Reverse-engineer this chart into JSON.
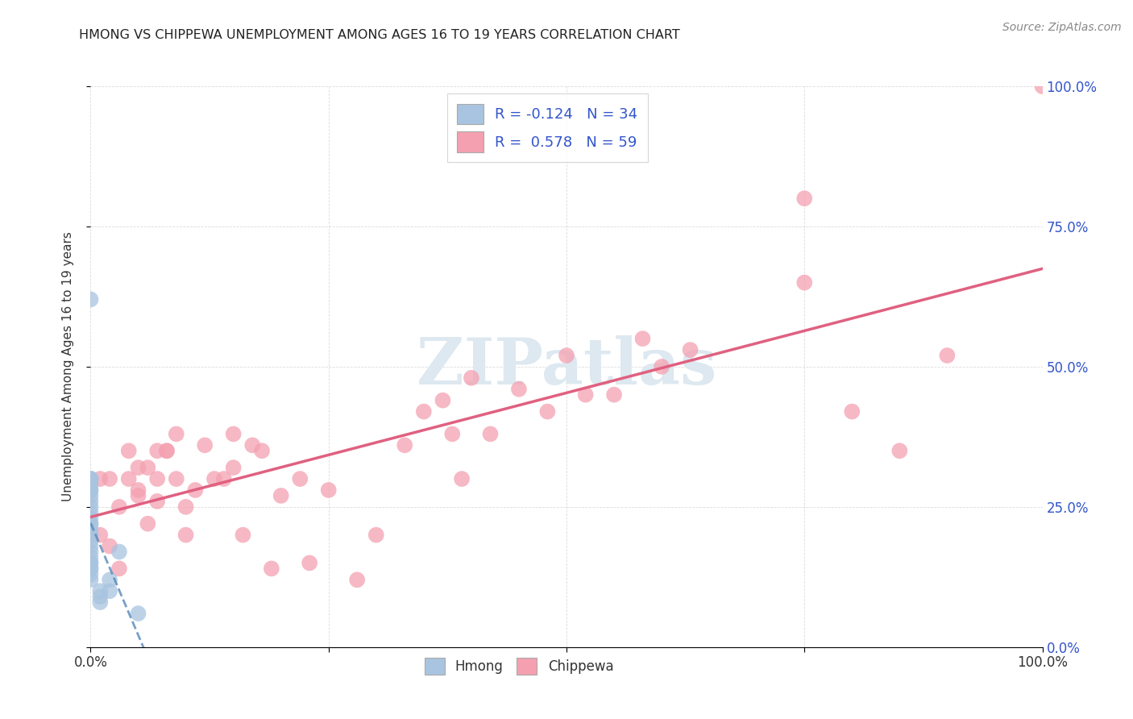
{
  "title": "HMONG VS CHIPPEWA UNEMPLOYMENT AMONG AGES 16 TO 19 YEARS CORRELATION CHART",
  "source": "Source: ZipAtlas.com",
  "ylabel": "Unemployment Among Ages 16 to 19 years",
  "xlim": [
    0,
    1.0
  ],
  "ylim": [
    0,
    1.0
  ],
  "xticks": [
    0.0,
    0.25,
    0.5,
    0.75,
    1.0
  ],
  "yticks": [
    0.0,
    0.25,
    0.5,
    0.75,
    1.0
  ],
  "xticklabels": [
    "0.0%",
    "",
    "",
    "",
    "100.0%"
  ],
  "right_yticklabels": [
    "0.0%",
    "25.0%",
    "50.0%",
    "75.0%",
    "100.0%"
  ],
  "hmong_color": "#a8c4e0",
  "chippewa_color": "#f4a0b0",
  "hmong_R": -0.124,
  "hmong_N": 34,
  "chippewa_R": 0.578,
  "chippewa_N": 59,
  "hmong_line_color": "#5588bb",
  "chippewa_line_color": "#e06080",
  "watermark_color": "#dde8f0",
  "legend_edge_color": "#cccccc",
  "text_color": "#3355cc",
  "title_color": "#222222",
  "source_color": "#888888",
  "grid_color": "#cccccc",
  "hmong_x": [
    0.0,
    0.0,
    0.0,
    0.0,
    0.0,
    0.0,
    0.0,
    0.0,
    0.0,
    0.0,
    0.0,
    0.0,
    0.0,
    0.0,
    0.0,
    0.0,
    0.0,
    0.0,
    0.0,
    0.0,
    0.0,
    0.0,
    0.0,
    0.0,
    0.0,
    0.0,
    0.0,
    0.01,
    0.01,
    0.01,
    0.02,
    0.02,
    0.03,
    0.05
  ],
  "hmong_y": [
    0.12,
    0.13,
    0.14,
    0.14,
    0.15,
    0.15,
    0.16,
    0.17,
    0.18,
    0.19,
    0.2,
    0.2,
    0.21,
    0.22,
    0.22,
    0.23,
    0.24,
    0.25,
    0.26,
    0.27,
    0.28,
    0.28,
    0.29,
    0.3,
    0.3,
    0.3,
    0.62,
    0.08,
    0.09,
    0.1,
    0.1,
    0.12,
    0.17,
    0.06
  ],
  "chippewa_x": [
    0.01,
    0.01,
    0.02,
    0.02,
    0.03,
    0.03,
    0.04,
    0.04,
    0.05,
    0.05,
    0.05,
    0.06,
    0.06,
    0.07,
    0.07,
    0.07,
    0.08,
    0.08,
    0.09,
    0.09,
    0.1,
    0.1,
    0.11,
    0.12,
    0.13,
    0.14,
    0.15,
    0.15,
    0.16,
    0.17,
    0.18,
    0.19,
    0.2,
    0.22,
    0.23,
    0.25,
    0.28,
    0.3,
    0.33,
    0.35,
    0.37,
    0.38,
    0.39,
    0.4,
    0.42,
    0.45,
    0.48,
    0.5,
    0.52,
    0.55,
    0.58,
    0.6,
    0.63,
    0.75,
    0.75,
    0.8,
    0.85,
    0.9,
    1.0
  ],
  "chippewa_y": [
    0.2,
    0.3,
    0.18,
    0.3,
    0.14,
    0.25,
    0.3,
    0.35,
    0.27,
    0.28,
    0.32,
    0.22,
    0.32,
    0.35,
    0.26,
    0.3,
    0.35,
    0.35,
    0.3,
    0.38,
    0.25,
    0.2,
    0.28,
    0.36,
    0.3,
    0.3,
    0.38,
    0.32,
    0.2,
    0.36,
    0.35,
    0.14,
    0.27,
    0.3,
    0.15,
    0.28,
    0.12,
    0.2,
    0.36,
    0.42,
    0.44,
    0.38,
    0.3,
    0.48,
    0.38,
    0.46,
    0.42,
    0.52,
    0.45,
    0.45,
    0.55,
    0.5,
    0.53,
    0.65,
    0.8,
    0.42,
    0.35,
    0.52,
    1.0
  ]
}
